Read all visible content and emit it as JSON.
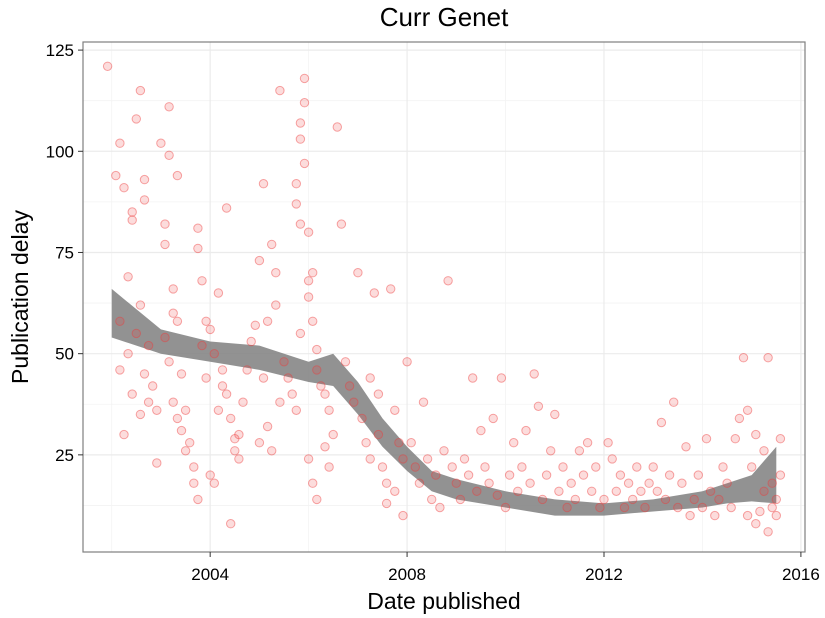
{
  "chart_data": {
    "type": "scatter",
    "title": "Curr Genet",
    "xlabel": "Date published",
    "ylabel": "Publication delay",
    "xlim": [
      "2001-06-01",
      "2016-02-01"
    ],
    "ylim": [
      1,
      127
    ],
    "x_ticks": [
      "2004",
      "2008",
      "2012",
      "2016"
    ],
    "y_ticks": [
      "25",
      "50",
      "75",
      "100",
      "125"
    ],
    "grid": true,
    "point_color": "#ee3b3b",
    "smooth_color": "#7f7f7f",
    "smooth": {
      "x": [
        "2002-01",
        "2003-01",
        "2004-01",
        "2005-01",
        "2006-01",
        "2006-07",
        "2007-01",
        "2007-07",
        "2008-01",
        "2008-07",
        "2009-01",
        "2010-01",
        "2011-01",
        "2012-01",
        "2013-01",
        "2014-01",
        "2014-07",
        "2015-01",
        "2015-07"
      ],
      "lower": [
        54,
        50,
        48,
        46,
        43,
        42,
        35,
        27,
        21,
        16,
        14,
        12,
        10,
        10,
        11,
        12,
        13,
        13.5,
        13
      ],
      "upper": [
        66,
        56,
        53,
        52,
        48,
        50,
        43,
        34,
        27,
        21,
        19,
        16,
        14,
        13,
        14,
        16,
        18,
        20,
        27
      ]
    },
    "points": [
      [
        "2001-12",
        121
      ],
      [
        "2002-02",
        94
      ],
      [
        "2002-03",
        102
      ],
      [
        "2002-04",
        91
      ],
      [
        "2002-06",
        85
      ],
      [
        "2002-07",
        108
      ],
      [
        "2002-08",
        115
      ],
      [
        "2002-09",
        93
      ],
      [
        "2002-09",
        88
      ],
      [
        "2002-06",
        83
      ],
      [
        "2002-05",
        69
      ],
      [
        "2002-03",
        58
      ],
      [
        "2002-03",
        46
      ],
      [
        "2002-05",
        50
      ],
      [
        "2002-07",
        55
      ],
      [
        "2002-08",
        62
      ],
      [
        "2002-09",
        45
      ],
      [
        "2002-10",
        38
      ],
      [
        "2002-11",
        42
      ],
      [
        "2002-12",
        36
      ],
      [
        "2002-04",
        30
      ],
      [
        "2002-06",
        40
      ],
      [
        "2002-08",
        35
      ],
      [
        "2002-10",
        52
      ],
      [
        "2002-12",
        23
      ],
      [
        "2003-01",
        102
      ],
      [
        "2003-02",
        77
      ],
      [
        "2003-02",
        82
      ],
      [
        "2003-03",
        99
      ],
      [
        "2003-03",
        111
      ],
      [
        "2003-04",
        60
      ],
      [
        "2003-04",
        66
      ],
      [
        "2003-05",
        94
      ],
      [
        "2003-05",
        58
      ],
      [
        "2003-06",
        45
      ],
      [
        "2003-07",
        36
      ],
      [
        "2003-08",
        28
      ],
      [
        "2003-09",
        22
      ],
      [
        "2003-09",
        18
      ],
      [
        "2003-10",
        14
      ],
      [
        "2003-11",
        52
      ],
      [
        "2003-12",
        44
      ],
      [
        "2003-02",
        54
      ],
      [
        "2003-03",
        48
      ],
      [
        "2003-04",
        38
      ],
      [
        "2003-05",
        34
      ],
      [
        "2003-06",
        31
      ],
      [
        "2003-07",
        26
      ],
      [
        "2003-10",
        81
      ],
      [
        "2003-10",
        76
      ],
      [
        "2003-11",
        68
      ],
      [
        "2003-12",
        58
      ],
      [
        "2004-01",
        56
      ],
      [
        "2004-02",
        50
      ],
      [
        "2004-03",
        65
      ],
      [
        "2004-04",
        46
      ],
      [
        "2004-05",
        40
      ],
      [
        "2004-06",
        34
      ],
      [
        "2004-07",
        29
      ],
      [
        "2004-08",
        24
      ],
      [
        "2004-01",
        20
      ],
      [
        "2004-02",
        18
      ],
      [
        "2004-03",
        36
      ],
      [
        "2004-04",
        42
      ],
      [
        "2004-05",
        86
      ],
      [
        "2004-06",
        8
      ],
      [
        "2004-07",
        26
      ],
      [
        "2004-08",
        30
      ],
      [
        "2004-09",
        38
      ],
      [
        "2004-10",
        46
      ],
      [
        "2004-11",
        53
      ],
      [
        "2004-12",
        57
      ],
      [
        "2005-01",
        73
      ],
      [
        "2005-02",
        92
      ],
      [
        "2005-03",
        58
      ],
      [
        "2005-04",
        77
      ],
      [
        "2005-05",
        70
      ],
      [
        "2005-06",
        115
      ],
      [
        "2005-07",
        48
      ],
      [
        "2005-08",
        44
      ],
      [
        "2005-09",
        40
      ],
      [
        "2005-10",
        36
      ],
      [
        "2005-11",
        55
      ],
      [
        "2005-12",
        97
      ],
      [
        "2005-01",
        28
      ],
      [
        "2005-02",
        44
      ],
      [
        "2005-03",
        32
      ],
      [
        "2005-04",
        26
      ],
      [
        "2005-05",
        62
      ],
      [
        "2005-06",
        38
      ],
      [
        "2005-10",
        92
      ],
      [
        "2005-10",
        87
      ],
      [
        "2005-11",
        103
      ],
      [
        "2005-11",
        107
      ],
      [
        "2005-12",
        112
      ],
      [
        "2005-12",
        118
      ],
      [
        "2005-11",
        82
      ],
      [
        "2006-01",
        80
      ],
      [
        "2006-01",
        68
      ],
      [
        "2006-01",
        64
      ],
      [
        "2006-02",
        58
      ],
      [
        "2006-02",
        70
      ],
      [
        "2006-03",
        51
      ],
      [
        "2006-03",
        46
      ],
      [
        "2006-04",
        42
      ],
      [
        "2006-05",
        40
      ],
      [
        "2006-06",
        36
      ],
      [
        "2006-07",
        30
      ],
      [
        "2006-01",
        24
      ],
      [
        "2006-02",
        18
      ],
      [
        "2006-03",
        14
      ],
      [
        "2006-05",
        27
      ],
      [
        "2006-06",
        22
      ],
      [
        "2006-08",
        106
      ],
      [
        "2006-09",
        82
      ],
      [
        "2006-10",
        48
      ],
      [
        "2006-11",
        42
      ],
      [
        "2006-12",
        38
      ],
      [
        "2007-01",
        70
      ],
      [
        "2007-02",
        34
      ],
      [
        "2007-03",
        28
      ],
      [
        "2007-04",
        24
      ],
      [
        "2007-05",
        65
      ],
      [
        "2007-06",
        30
      ],
      [
        "2007-07",
        22
      ],
      [
        "2007-08",
        18
      ],
      [
        "2007-09",
        66
      ],
      [
        "2007-10",
        36
      ],
      [
        "2007-11",
        28
      ],
      [
        "2007-12",
        24
      ],
      [
        "2007-04",
        44
      ],
      [
        "2007-06",
        40
      ],
      [
        "2007-08",
        13
      ],
      [
        "2007-10",
        16
      ],
      [
        "2007-12",
        10
      ],
      [
        "2008-01",
        48
      ],
      [
        "2008-02",
        28
      ],
      [
        "2008-03",
        22
      ],
      [
        "2008-04",
        18
      ],
      [
        "2008-05",
        38
      ],
      [
        "2008-06",
        24
      ],
      [
        "2008-07",
        14
      ],
      [
        "2008-08",
        20
      ],
      [
        "2008-09",
        12
      ],
      [
        "2008-10",
        26
      ],
      [
        "2008-11",
        68
      ],
      [
        "2008-12",
        22
      ],
      [
        "2009-01",
        18
      ],
      [
        "2009-02",
        14
      ],
      [
        "2009-03",
        24
      ],
      [
        "2009-04",
        20
      ],
      [
        "2009-05",
        44
      ],
      [
        "2009-06",
        16
      ],
      [
        "2009-07",
        31
      ],
      [
        "2009-08",
        22
      ],
      [
        "2009-09",
        18
      ],
      [
        "2009-10",
        34
      ],
      [
        "2009-11",
        15
      ],
      [
        "2009-12",
        44
      ],
      [
        "2010-01",
        12
      ],
      [
        "2010-02",
        20
      ],
      [
        "2010-03",
        28
      ],
      [
        "2010-04",
        16
      ],
      [
        "2010-05",
        22
      ],
      [
        "2010-06",
        31
      ],
      [
        "2010-07",
        18
      ],
      [
        "2010-08",
        45
      ],
      [
        "2010-09",
        37
      ],
      [
        "2010-10",
        14
      ],
      [
        "2010-11",
        20
      ],
      [
        "2010-12",
        26
      ],
      [
        "2011-01",
        35
      ],
      [
        "2011-02",
        16
      ],
      [
        "2011-03",
        22
      ],
      [
        "2011-04",
        12
      ],
      [
        "2011-05",
        18
      ],
      [
        "2011-06",
        14
      ],
      [
        "2011-07",
        26
      ],
      [
        "2011-08",
        20
      ],
      [
        "2011-09",
        28
      ],
      [
        "2011-10",
        16
      ],
      [
        "2011-11",
        22
      ],
      [
        "2011-12",
        12
      ],
      [
        "2012-01",
        14
      ],
      [
        "2012-02",
        28
      ],
      [
        "2012-03",
        24
      ],
      [
        "2012-04",
        16
      ],
      [
        "2012-05",
        20
      ],
      [
        "2012-06",
        12
      ],
      [
        "2012-07",
        18
      ],
      [
        "2012-08",
        14
      ],
      [
        "2012-09",
        22
      ],
      [
        "2012-10",
        16
      ],
      [
        "2012-11",
        12
      ],
      [
        "2012-12",
        18
      ],
      [
        "2013-01",
        22
      ],
      [
        "2013-02",
        16
      ],
      [
        "2013-03",
        33
      ],
      [
        "2013-04",
        14
      ],
      [
        "2013-05",
        20
      ],
      [
        "2013-06",
        38
      ],
      [
        "2013-07",
        12
      ],
      [
        "2013-08",
        18
      ],
      [
        "2013-09",
        27
      ],
      [
        "2013-10",
        10
      ],
      [
        "2013-11",
        14
      ],
      [
        "2013-12",
        20
      ],
      [
        "2014-01",
        12
      ],
      [
        "2014-02",
        29
      ],
      [
        "2014-03",
        16
      ],
      [
        "2014-04",
        10
      ],
      [
        "2014-05",
        14
      ],
      [
        "2014-06",
        22
      ],
      [
        "2014-07",
        18
      ],
      [
        "2014-08",
        12
      ],
      [
        "2014-09",
        29
      ],
      [
        "2014-10",
        34
      ],
      [
        "2014-11",
        49
      ],
      [
        "2014-12",
        36
      ],
      [
        "2015-01",
        22
      ],
      [
        "2015-02",
        30
      ],
      [
        "2015-03",
        11
      ],
      [
        "2015-04",
        26
      ],
      [
        "2015-05",
        49
      ],
      [
        "2015-06",
        18
      ],
      [
        "2015-07",
        14
      ],
      [
        "2015-07",
        10
      ],
      [
        "2015-08",
        29
      ],
      [
        "2015-08",
        20
      ],
      [
        "2015-06",
        12
      ],
      [
        "2015-04",
        16
      ],
      [
        "2015-02",
        8
      ],
      [
        "2014-12",
        10
      ],
      [
        "2015-05",
        6
      ]
    ]
  }
}
